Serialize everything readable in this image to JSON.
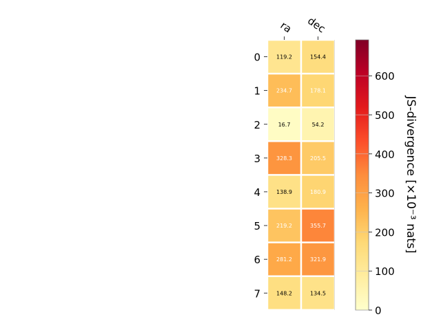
{
  "chart_data": {
    "type": "heatmap",
    "columns": [
      "ra",
      "dec"
    ],
    "rows": [
      "0",
      "1",
      "2",
      "3",
      "4",
      "5",
      "6",
      "7"
    ],
    "values": [
      [
        119.2,
        154.4
      ],
      [
        234.7,
        178.1
      ],
      [
        16.7,
        54.2
      ],
      [
        328.3,
        205.5
      ],
      [
        138.9,
        180.9
      ],
      [
        219.2,
        355.7
      ],
      [
        281.2,
        321.9
      ],
      [
        148.2,
        134.5
      ]
    ],
    "cell_labels": [
      [
        "119.2",
        "154.4"
      ],
      [
        "234.7",
        "178.1"
      ],
      [
        "16.7",
        "54.2"
      ],
      [
        "328.3",
        "205.5"
      ],
      [
        "138.9",
        "180.9"
      ],
      [
        "219.2",
        "355.7"
      ],
      [
        "281.2",
        "321.9"
      ],
      [
        "148.2",
        "134.5"
      ]
    ],
    "colorbar": {
      "label": "JS-divergence [×10⁻³ nats]",
      "range": [
        0,
        692
      ],
      "ticks": [
        0,
        100,
        200,
        300,
        400,
        500,
        600
      ],
      "tick_labels": [
        "0",
        "100",
        "200",
        "300",
        "400",
        "500",
        "600"
      ],
      "colormap": "YlOrRd"
    },
    "colors": {
      "cmap_stops": [
        "#ffffcc",
        "#ffeda0",
        "#fed976",
        "#feb24c",
        "#fd8d3c",
        "#fc4e2a",
        "#e31a1c",
        "#bd0026",
        "#800026"
      ],
      "label_light": "#ffffff",
      "label_dark": "#000000"
    }
  }
}
